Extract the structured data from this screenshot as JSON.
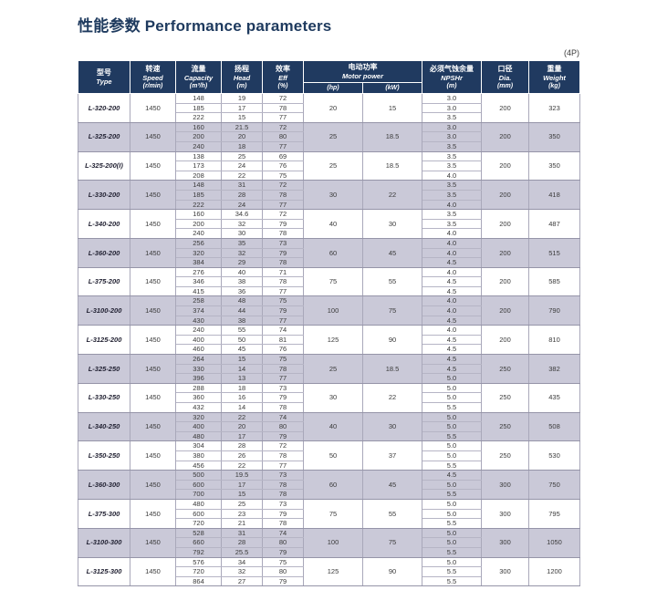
{
  "title": "性能参数 Performance parameters",
  "page_label": "(4P)",
  "colors": {
    "header_bg": "#203a60",
    "title_text": "#1e3a5e",
    "shaded_row_bg": "#cac9d8",
    "grid_line": "#a9a8ba"
  },
  "table": {
    "columns": [
      {
        "cn": "型号",
        "en": "Type",
        "unit": ""
      },
      {
        "cn": "转速",
        "en": "Speed",
        "unit": "(r/min)"
      },
      {
        "cn": "流量",
        "en": "Capacity",
        "unit": "(m³/h)"
      },
      {
        "cn": "扬程",
        "en": "Head",
        "unit": "(m)"
      },
      {
        "cn": "效率",
        "en": "Eff",
        "unit": "(%)"
      },
      {
        "cn": "电动功率",
        "en": "Motor power",
        "sub": [
          "(hp)",
          "(kW)"
        ]
      },
      {
        "cn": "必须气蚀余量",
        "en": "NPSHr",
        "unit": "(m)"
      },
      {
        "cn": "口径",
        "en": "Dia.",
        "unit": "(mm)"
      },
      {
        "cn": "重量",
        "en": "Weight",
        "unit": "(kg)"
      }
    ],
    "rows": [
      {
        "type": "L-320-200",
        "speed": "1450",
        "capacity": [
          "148",
          "185",
          "222"
        ],
        "head": [
          "19",
          "17",
          "15"
        ],
        "eff": [
          "72",
          "78",
          "77"
        ],
        "hp": "20",
        "kw": "15",
        "npshr": [
          "3.0",
          "3.0",
          "3.5"
        ],
        "dia": "200",
        "weight": "323"
      },
      {
        "type": "L-325-200",
        "speed": "1450",
        "capacity": [
          "160",
          "200",
          "240"
        ],
        "head": [
          "21.5",
          "20",
          "18"
        ],
        "eff": [
          "72",
          "80",
          "77"
        ],
        "hp": "25",
        "kw": "18.5",
        "npshr": [
          "3.0",
          "3.0",
          "3.5"
        ],
        "dia": "200",
        "weight": "350"
      },
      {
        "type": "L-325-200(I)",
        "speed": "1450",
        "capacity": [
          "138",
          "173",
          "208"
        ],
        "head": [
          "25",
          "24",
          "22"
        ],
        "eff": [
          "69",
          "76",
          "75"
        ],
        "hp": "25",
        "kw": "18.5",
        "npshr": [
          "3.5",
          "3.5",
          "4.0"
        ],
        "dia": "200",
        "weight": "350"
      },
      {
        "type": "L-330-200",
        "speed": "1450",
        "capacity": [
          "148",
          "185",
          "222"
        ],
        "head": [
          "31",
          "28",
          "24"
        ],
        "eff": [
          "72",
          "78",
          "77"
        ],
        "hp": "30",
        "kw": "22",
        "npshr": [
          "3.5",
          "3.5",
          "4.0"
        ],
        "dia": "200",
        "weight": "418"
      },
      {
        "type": "L-340-200",
        "speed": "1450",
        "capacity": [
          "160",
          "200",
          "240"
        ],
        "head": [
          "34.6",
          "32",
          "30"
        ],
        "eff": [
          "72",
          "79",
          "78"
        ],
        "hp": "40",
        "kw": "30",
        "npshr": [
          "3.5",
          "3.5",
          "4.0"
        ],
        "dia": "200",
        "weight": "487"
      },
      {
        "type": "L-360-200",
        "speed": "1450",
        "capacity": [
          "256",
          "320",
          "384"
        ],
        "head": [
          "35",
          "32",
          "29"
        ],
        "eff": [
          "73",
          "79",
          "78"
        ],
        "hp": "60",
        "kw": "45",
        "npshr": [
          "4.0",
          "4.0",
          "4.5"
        ],
        "dia": "200",
        "weight": "515"
      },
      {
        "type": "L-375-200",
        "speed": "1450",
        "capacity": [
          "276",
          "346",
          "415"
        ],
        "head": [
          "40",
          "38",
          "36"
        ],
        "eff": [
          "71",
          "78",
          "77"
        ],
        "hp": "75",
        "kw": "55",
        "npshr": [
          "4.0",
          "4.5",
          "4.5"
        ],
        "dia": "200",
        "weight": "585"
      },
      {
        "type": "L-3100-200",
        "speed": "1450",
        "capacity": [
          "258",
          "374",
          "430"
        ],
        "head": [
          "48",
          "44",
          "38"
        ],
        "eff": [
          "75",
          "79",
          "77"
        ],
        "hp": "100",
        "kw": "75",
        "npshr": [
          "4.0",
          "4.0",
          "4.5"
        ],
        "dia": "200",
        "weight": "790"
      },
      {
        "type": "L-3125-200",
        "speed": "1450",
        "capacity": [
          "240",
          "400",
          "460"
        ],
        "head": [
          "55",
          "50",
          "45"
        ],
        "eff": [
          "74",
          "81",
          "76"
        ],
        "hp": "125",
        "kw": "90",
        "npshr": [
          "4.0",
          "4.5",
          "4.5"
        ],
        "dia": "200",
        "weight": "810"
      },
      {
        "type": "L-325-250",
        "speed": "1450",
        "capacity": [
          "264",
          "330",
          "396"
        ],
        "head": [
          "15",
          "14",
          "13"
        ],
        "eff": [
          "75",
          "78",
          "77"
        ],
        "hp": "25",
        "kw": "18.5",
        "npshr": [
          "4.5",
          "4.5",
          "5.0"
        ],
        "dia": "250",
        "weight": "382"
      },
      {
        "type": "L-330-250",
        "speed": "1450",
        "capacity": [
          "288",
          "360",
          "432"
        ],
        "head": [
          "18",
          "16",
          "14"
        ],
        "eff": [
          "73",
          "79",
          "78"
        ],
        "hp": "30",
        "kw": "22",
        "npshr": [
          "5.0",
          "5.0",
          "5.5"
        ],
        "dia": "250",
        "weight": "435"
      },
      {
        "type": "L-340-250",
        "speed": "1450",
        "capacity": [
          "320",
          "400",
          "480"
        ],
        "head": [
          "22",
          "20",
          "17"
        ],
        "eff": [
          "74",
          "80",
          "79"
        ],
        "hp": "40",
        "kw": "30",
        "npshr": [
          "5.0",
          "5.0",
          "5.5"
        ],
        "dia": "250",
        "weight": "508"
      },
      {
        "type": "L-350-250",
        "speed": "1450",
        "capacity": [
          "304",
          "380",
          "456"
        ],
        "head": [
          "28",
          "26",
          "22"
        ],
        "eff": [
          "72",
          "78",
          "77"
        ],
        "hp": "50",
        "kw": "37",
        "npshr": [
          "5.0",
          "5.0",
          "5.5"
        ],
        "dia": "250",
        "weight": "530"
      },
      {
        "type": "L-360-300",
        "speed": "1450",
        "capacity": [
          "500",
          "600",
          "700"
        ],
        "head": [
          "19.5",
          "17",
          "15"
        ],
        "eff": [
          "73",
          "78",
          "78"
        ],
        "hp": "60",
        "kw": "45",
        "npshr": [
          "4.5",
          "5.0",
          "5.5"
        ],
        "dia": "300",
        "weight": "750"
      },
      {
        "type": "L-375-300",
        "speed": "1450",
        "capacity": [
          "480",
          "600",
          "720"
        ],
        "head": [
          "25",
          "23",
          "21"
        ],
        "eff": [
          "73",
          "79",
          "78"
        ],
        "hp": "75",
        "kw": "55",
        "npshr": [
          "5.0",
          "5.0",
          "5.5"
        ],
        "dia": "300",
        "weight": "795"
      },
      {
        "type": "L-3100-300",
        "speed": "1450",
        "capacity": [
          "528",
          "660",
          "792"
        ],
        "head": [
          "31",
          "28",
          "25.5"
        ],
        "eff": [
          "74",
          "80",
          "79"
        ],
        "hp": "100",
        "kw": "75",
        "npshr": [
          "5.0",
          "5.0",
          "5.5"
        ],
        "dia": "300",
        "weight": "1050"
      },
      {
        "type": "L-3125-300",
        "speed": "1450",
        "capacity": [
          "576",
          "720",
          "864"
        ],
        "head": [
          "34",
          "32",
          "27"
        ],
        "eff": [
          "75",
          "80",
          "79"
        ],
        "hp": "125",
        "kw": "90",
        "npshr": [
          "5.0",
          "5.5",
          "5.5"
        ],
        "dia": "300",
        "weight": "1200"
      }
    ]
  }
}
